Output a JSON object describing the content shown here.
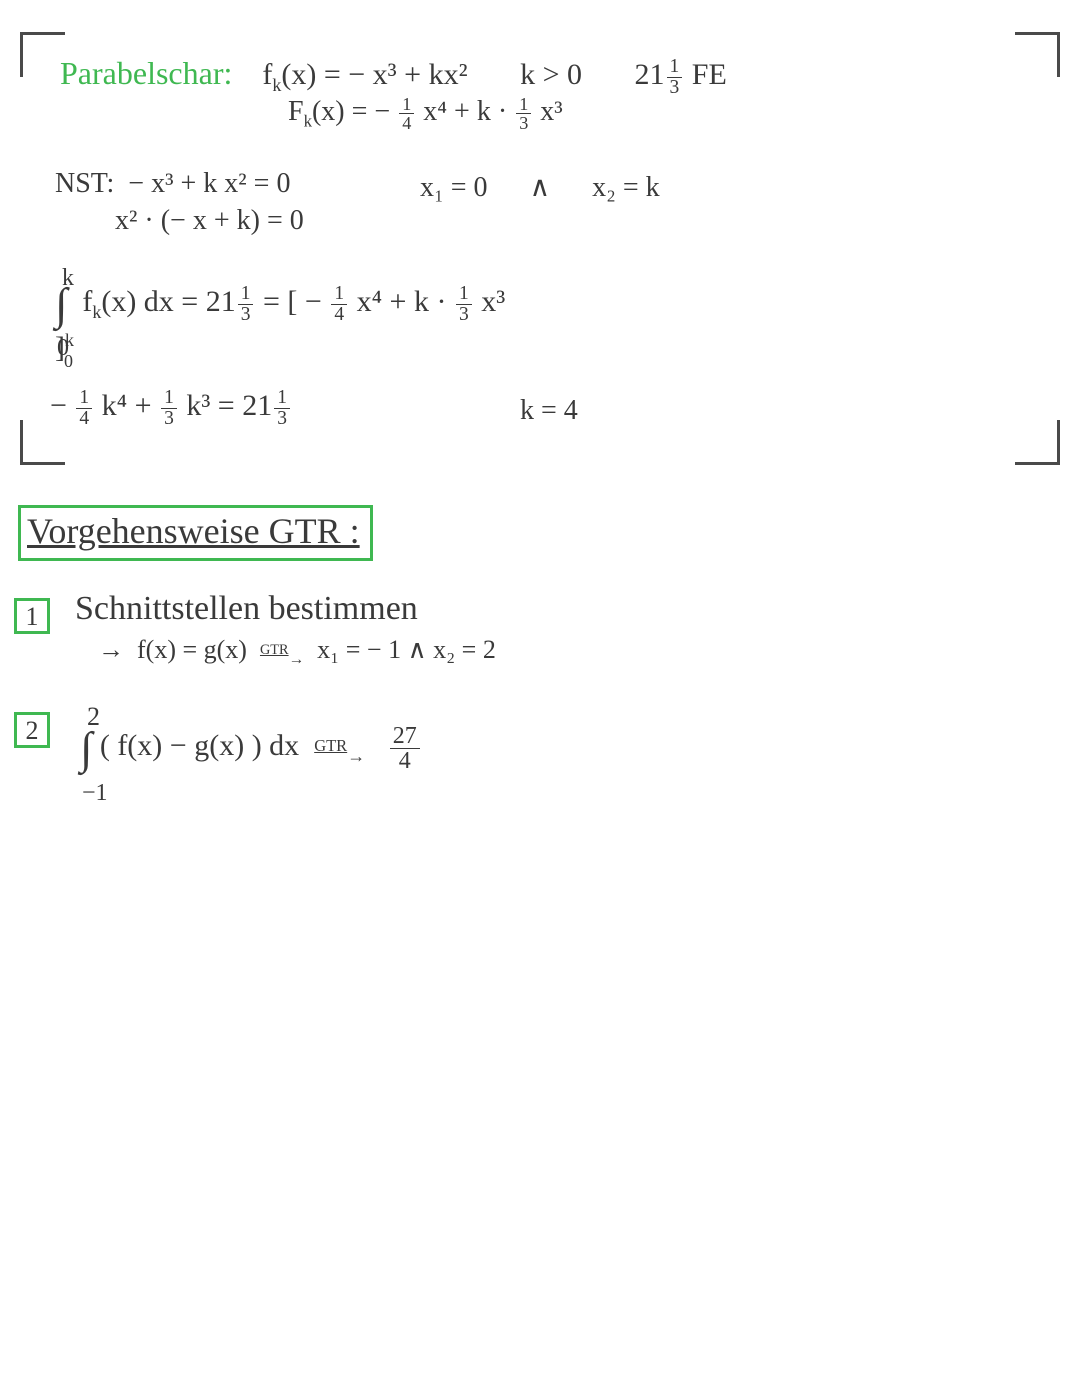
{
  "colors": {
    "green": "#3fb851",
    "text": "#3a3a3a",
    "bg": "#ffffff"
  },
  "header": {
    "title": "Parabelschar:",
    "func": "f",
    "func_sub": "k",
    "func_of": "(x) = − x³ + kx²",
    "cond": "k > 0",
    "area": "21",
    "area_frac_n": "1",
    "area_frac_d": "3",
    "area_unit": "FE",
    "antideriv_label": "F",
    "antideriv_sub": "k",
    "antideriv": "(x) = −",
    "f14_n": "1",
    "f14_d": "4",
    "x4": " x⁴ + k ·",
    "f13_n": "1",
    "f13_d": "3",
    "x3": "x³"
  },
  "nst": {
    "label": "NST:",
    "eq1": "− x³ + k x² = 0",
    "eq2": "x² · (− x + k) = 0",
    "r1": "x₁ = 0",
    "and": "∧",
    "r2": "x₂ = k"
  },
  "integral": {
    "upper": "k",
    "lower": "0",
    "fk": "f",
    "fk_sub": "k",
    "body": "(x) dx = 21",
    "f13a_n": "1",
    "f13a_d": "3",
    "eq": " = [ −",
    "q14_n": "1",
    "q14_d": "4",
    "mid": " x⁴ + k ·",
    "q13_n": "1",
    "q13_d": "3",
    "end": " x³ ]",
    "bound_up": "k",
    "bound_lo": "0"
  },
  "solve": {
    "neg": "−",
    "f14_n": "1",
    "f14_d": "4",
    "k4": " k⁴ +",
    "f13_n": "1",
    "f13_d": "3",
    "k3": " k³ = 21",
    "r_n": "1",
    "r_d": "3",
    "ksol": "k = 4"
  },
  "gtr": {
    "title": "Vorgehensweise GTR :"
  },
  "step1": {
    "num": "1",
    "heading": "Schnittstellen   bestimmen",
    "arrow": "→",
    "eq": "f(x) = g(x)",
    "gtr": "GTR",
    "res": "x₁ = − 1   ∧  x₂ = 2"
  },
  "step2": {
    "num": "2",
    "upper": "2",
    "lower": "−1",
    "body": "( f(x) − g(x) ) dx",
    "gtr": "GTR",
    "res_n": "27",
    "res_d": "4"
  }
}
